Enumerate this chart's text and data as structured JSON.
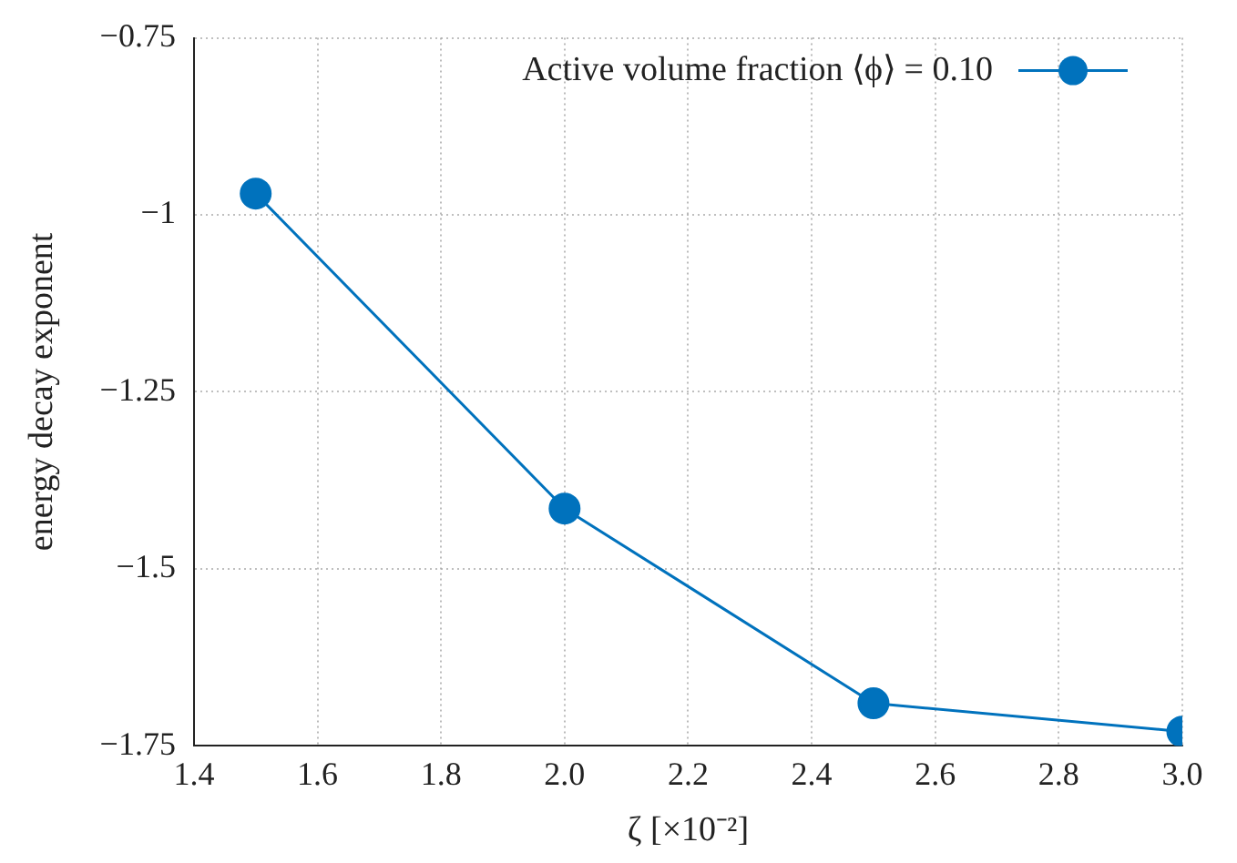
{
  "chart_data": {
    "type": "line",
    "xlabel": "ζ [×10⁻²]",
    "ylabel": "energy decay exponent",
    "x": [
      1.5,
      2.0,
      2.5,
      3.0
    ],
    "series": [
      {
        "name": "Active volume fraction ⟨ϕ⟩ = 0.10",
        "color": "#0072bd",
        "values": [
          -0.97,
          -1.415,
          -1.69,
          -1.73
        ]
      }
    ],
    "xlim": [
      1.4,
      3.0
    ],
    "xticks": [
      {
        "value": 1.4,
        "label": "1.4"
      },
      {
        "value": 1.6,
        "label": "1.6"
      },
      {
        "value": 1.8,
        "label": "1.8"
      },
      {
        "value": 2.0,
        "label": "2.0"
      },
      {
        "value": 2.2,
        "label": "2.2"
      },
      {
        "value": 2.4,
        "label": "2.4"
      },
      {
        "value": 2.6,
        "label": "2.6"
      },
      {
        "value": 2.8,
        "label": "2.8"
      },
      {
        "value": 3.0,
        "label": "3.0"
      }
    ],
    "ylim": [
      -1.75,
      -0.75
    ],
    "yticks": [
      -1.75,
      -1.5,
      -1.25,
      -1,
      -0.75
    ],
    "grid": true,
    "legend": "top right",
    "marker": "circle",
    "line_style": "solid"
  }
}
